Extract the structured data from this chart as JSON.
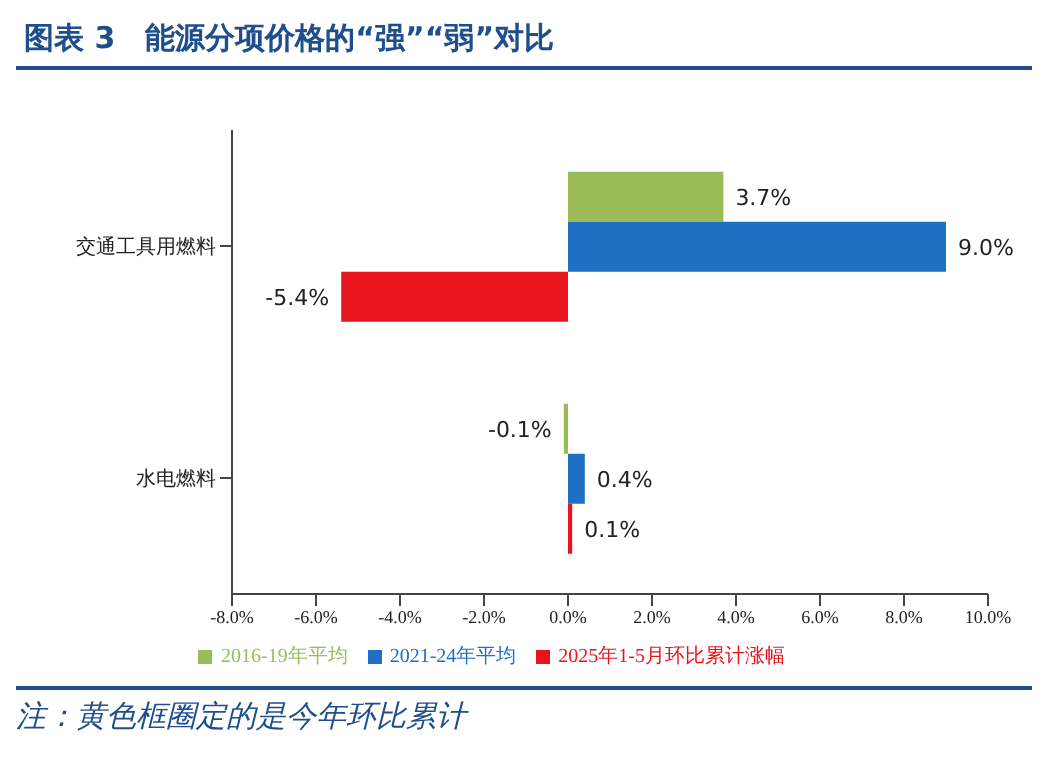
{
  "chart_data": {
    "type": "bar",
    "orientation": "horizontal",
    "title": "图表 3　能源分项价格的“强”“弱”对比",
    "categories": [
      "交通工具用燃料",
      "水电燃料"
    ],
    "series": [
      {
        "name": "2016-19年平均",
        "color": "#9bbb59",
        "values": [
          3.7,
          -0.1
        ],
        "value_labels": [
          "3.7%",
          "-0.1%"
        ]
      },
      {
        "name": "2021-24年平均",
        "color": "#1f6fc5",
        "values": [
          9.0,
          0.4
        ],
        "value_labels": [
          "9.0%",
          "0.4%"
        ]
      },
      {
        "name": "2025年1-5月环比累计涨幅",
        "color": "#e8141c",
        "values": [
          -5.4,
          0.1
        ],
        "value_labels": [
          "-5.4%",
          "0.1%"
        ]
      }
    ],
    "xlim": [
      -8,
      10
    ],
    "xticks": [
      {
        "value": -8,
        "label": "-8.0%"
      },
      {
        "value": -6,
        "label": "-6.0%"
      },
      {
        "value": -4,
        "label": "-4.0%"
      },
      {
        "value": -2,
        "label": "-2.0%"
      },
      {
        "value": 0,
        "label": "0.0%"
      },
      {
        "value": 2,
        "label": "2.0%"
      },
      {
        "value": 4,
        "label": "4.0%"
      },
      {
        "value": 6,
        "label": "6.0%"
      },
      {
        "value": 8,
        "label": "8.0%"
      },
      {
        "value": 10,
        "label": "10.0%"
      }
    ],
    "grid": false,
    "legend": "bottom",
    "annotations": [
      "注：黄色框圈定的是今年环比累计"
    ]
  }
}
